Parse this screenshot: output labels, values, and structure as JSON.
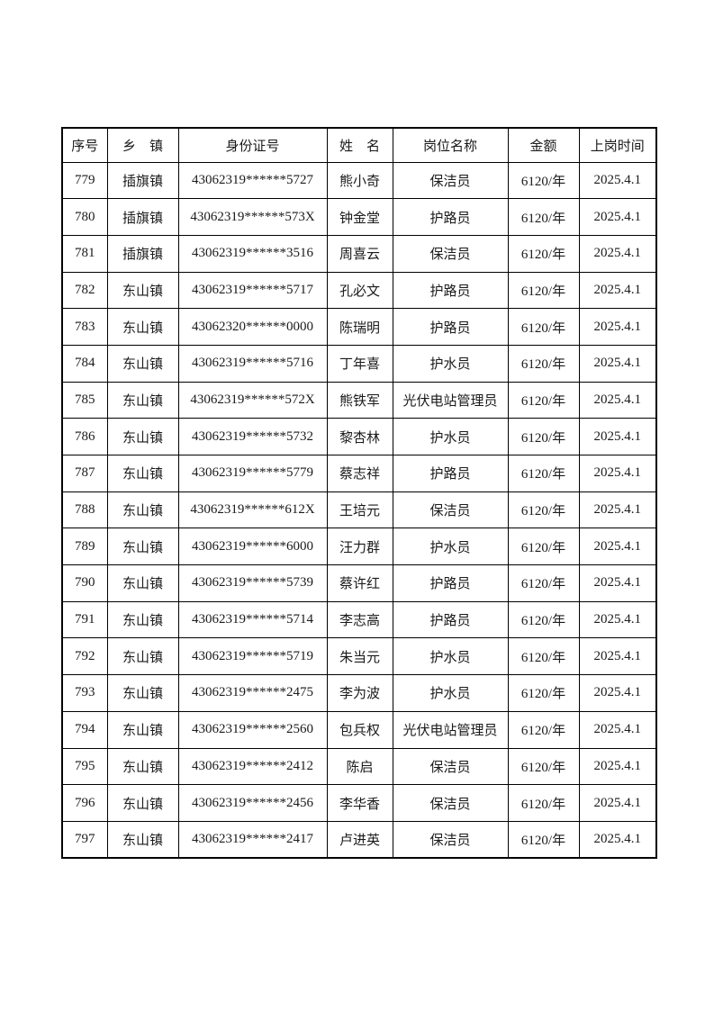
{
  "page": {
    "background_color": "#ffffff",
    "text_color": "#1a1a1a",
    "border_color": "#000000"
  },
  "table": {
    "columns": [
      "序号",
      "乡　镇",
      "身份证号",
      "姓　名",
      "岗位名称",
      "金额",
      "上岗时间"
    ],
    "rows": [
      [
        "779",
        "插旗镇",
        "43062319******5727",
        "熊小奇",
        "保洁员",
        "6120/年",
        "2025.4.1"
      ],
      [
        "780",
        "插旗镇",
        "43062319******573X",
        "钟金堂",
        "护路员",
        "6120/年",
        "2025.4.1"
      ],
      [
        "781",
        "插旗镇",
        "43062319******3516",
        "周喜云",
        "保洁员",
        "6120/年",
        "2025.4.1"
      ],
      [
        "782",
        "东山镇",
        "43062319******5717",
        "孔必文",
        "护路员",
        "6120/年",
        "2025.4.1"
      ],
      [
        "783",
        "东山镇",
        "43062320******0000",
        "陈瑞明",
        "护路员",
        "6120/年",
        "2025.4.1"
      ],
      [
        "784",
        "东山镇",
        "43062319******5716",
        "丁年喜",
        "护水员",
        "6120/年",
        "2025.4.1"
      ],
      [
        "785",
        "东山镇",
        "43062319******572X",
        "熊铁军",
        "光伏电站管理员",
        "6120/年",
        "2025.4.1"
      ],
      [
        "786",
        "东山镇",
        "43062319******5732",
        "黎杏林",
        "护水员",
        "6120/年",
        "2025.4.1"
      ],
      [
        "787",
        "东山镇",
        "43062319******5779",
        "蔡志祥",
        "护路员",
        "6120/年",
        "2025.4.1"
      ],
      [
        "788",
        "东山镇",
        "43062319******612X",
        "王培元",
        "保洁员",
        "6120/年",
        "2025.4.1"
      ],
      [
        "789",
        "东山镇",
        "43062319******6000",
        "汪力群",
        "护水员",
        "6120/年",
        "2025.4.1"
      ],
      [
        "790",
        "东山镇",
        "43062319******5739",
        "蔡许红",
        "护路员",
        "6120/年",
        "2025.4.1"
      ],
      [
        "791",
        "东山镇",
        "43062319******5714",
        "李志高",
        "护路员",
        "6120/年",
        "2025.4.1"
      ],
      [
        "792",
        "东山镇",
        "43062319******5719",
        "朱当元",
        "护水员",
        "6120/年",
        "2025.4.1"
      ],
      [
        "793",
        "东山镇",
        "43062319******2475",
        "李为波",
        "护水员",
        "6120/年",
        "2025.4.1"
      ],
      [
        "794",
        "东山镇",
        "43062319******2560",
        "包兵权",
        "光伏电站管理员",
        "6120/年",
        "2025.4.1"
      ],
      [
        "795",
        "东山镇",
        "43062319******2412",
        "陈启",
        "保洁员",
        "6120/年",
        "2025.4.1"
      ],
      [
        "796",
        "东山镇",
        "43062319******2456",
        "李华香",
        "保洁员",
        "6120/年",
        "2025.4.1"
      ],
      [
        "797",
        "东山镇",
        "43062319******2417",
        "卢进英",
        "保洁员",
        "6120/年",
        "2025.4.1"
      ]
    ]
  }
}
